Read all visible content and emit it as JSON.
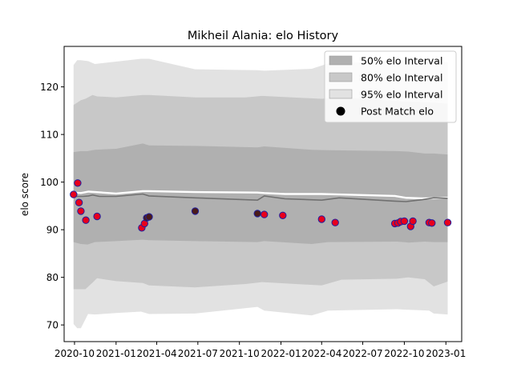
{
  "chart_data": {
    "type": "line",
    "title": "Mikheil Alania: elo History",
    "xlabel": "",
    "ylabel": "elo score",
    "x_ticks": [
      "2020-10",
      "2021-01",
      "2021-04",
      "2021-07",
      "2021-10",
      "2022-01",
      "2022-04",
      "2022-07",
      "2022-10",
      "2023-01"
    ],
    "y_ticks": [
      70,
      80,
      90,
      100,
      110,
      120
    ],
    "xlim": [
      "2020-09-08",
      "2023-02-05"
    ],
    "ylim": [
      66.5,
      128.5
    ],
    "grid": false,
    "legend_position": "top-right",
    "legend": [
      {
        "label": "50% elo Interval",
        "kind": "band50"
      },
      {
        "label": "80% elo Interval",
        "kind": "band80"
      },
      {
        "label": "95% elo Interval",
        "kind": "band95"
      },
      {
        "label": "Post Match elo",
        "kind": "marker"
      }
    ],
    "colors": {
      "band50": "#b0b0b0",
      "band80": "#c8c8c8",
      "band95": "#e2e2e2",
      "mean_line": "#707070",
      "median_line": "#ffffff",
      "marker_fill_win": "#e8001c",
      "marker_fill_loss": "#4a1a1a",
      "marker_edge": "#2020a0"
    },
    "series": [
      {
        "name": "95% elo Interval",
        "x": [
          "2020-09-29",
          "2020-10-07",
          "2020-10-15",
          "2020-10-31",
          "2020-11-15",
          "2021-01-01",
          "2021-02-25",
          "2021-03-15",
          "2021-06-25",
          "2021-11-10",
          "2021-11-25",
          "2022-03-10",
          "2022-04-15",
          "2022-09-15",
          "2022-10-05",
          "2022-11-25",
          "2022-12-05",
          "2023-01-05"
        ],
        "lower": [
          70.2,
          69.3,
          69.3,
          72.3,
          72.2,
          72.5,
          72.8,
          72.3,
          72.4,
          73.8,
          73.0,
          72.0,
          73.0,
          73.3,
          73.2,
          73.0,
          72.4,
          72.2
        ],
        "upper": [
          124.6,
          125.6,
          125.6,
          125.4,
          124.8,
          125.3,
          125.9,
          125.9,
          123.7,
          123.5,
          123.4,
          123.8,
          124.9,
          125.4,
          125.4,
          125.3,
          125.2,
          125.2
        ]
      },
      {
        "name": "80% elo Interval",
        "x": [
          "2020-09-29",
          "2020-10-15",
          "2020-10-25",
          "2020-11-10",
          "2020-11-20",
          "2021-01-01",
          "2021-03-01",
          "2021-03-15",
          "2021-06-25",
          "2021-10-15",
          "2021-11-20",
          "2022-04-01",
          "2022-05-15",
          "2022-09-15",
          "2022-10-10",
          "2022-11-15",
          "2022-12-05",
          "2023-01-05"
        ],
        "lower": [
          77.5,
          77.5,
          77.5,
          78.9,
          79.8,
          79.2,
          78.8,
          78.3,
          77.9,
          78.6,
          79.0,
          78.3,
          79.5,
          79.7,
          80.0,
          79.6,
          78.1,
          79.1
        ],
        "upper": [
          116.2,
          117.2,
          117.5,
          118.3,
          118.0,
          117.8,
          118.3,
          118.3,
          117.8,
          117.8,
          118.1,
          117.5,
          117.8,
          117.0,
          116.9,
          116.8,
          116.7,
          116.5
        ]
      },
      {
        "name": "50% elo Interval",
        "x": [
          "2020-09-29",
          "2020-10-15",
          "2020-10-30",
          "2020-11-15",
          "2021-01-01",
          "2021-03-01",
          "2021-03-15",
          "2021-06-25",
          "2021-11-10",
          "2021-11-25",
          "2022-03-10",
          "2022-04-15",
          "2022-09-15",
          "2022-10-10",
          "2022-11-15",
          "2022-12-05",
          "2023-01-05"
        ],
        "lower": [
          87.4,
          87.0,
          86.9,
          87.4,
          87.6,
          87.9,
          87.8,
          87.6,
          87.4,
          87.6,
          87.0,
          87.4,
          87.5,
          87.3,
          87.5,
          87.4,
          87.4
        ],
        "upper": [
          106.3,
          106.5,
          106.5,
          106.8,
          107.0,
          108.1,
          107.7,
          107.6,
          107.3,
          107.5,
          106.8,
          106.7,
          106.5,
          106.4,
          106.0,
          106.0,
          105.8
        ]
      },
      {
        "name": "mean elo",
        "x": [
          "2020-09-29",
          "2020-10-10",
          "2020-10-20",
          "2020-11-01",
          "2020-11-10",
          "2020-11-25",
          "2021-01-01",
          "2021-03-01",
          "2021-03-15",
          "2021-06-25",
          "2021-11-10",
          "2021-11-25",
          "2022-01-10",
          "2022-04-01",
          "2022-05-10",
          "2022-09-10",
          "2022-10-05",
          "2022-11-10",
          "2022-12-05",
          "2023-01-05"
        ],
        "values": [
          97.0,
          97.0,
          97.0,
          97.1,
          97.3,
          97.0,
          97.0,
          97.5,
          97.1,
          96.7,
          96.2,
          97.1,
          96.5,
          96.2,
          96.7,
          96.0,
          95.9,
          96.3,
          96.7,
          96.6
        ]
      },
      {
        "name": "median elo",
        "x": [
          "2020-09-29",
          "2020-10-15",
          "2020-11-01",
          "2021-01-01",
          "2021-03-01",
          "2021-03-15",
          "2021-06-25",
          "2021-11-10",
          "2021-11-25",
          "2022-01-10",
          "2022-04-01",
          "2022-05-10",
          "2022-09-10",
          "2022-10-05",
          "2022-11-10",
          "2022-12-05",
          "2023-01-05"
        ],
        "values": [
          97.8,
          97.7,
          98.0,
          97.6,
          98.1,
          98.1,
          97.9,
          97.8,
          97.7,
          97.5,
          97.5,
          97.4,
          97.1,
          96.7,
          96.6,
          96.6,
          96.7
        ]
      },
      {
        "name": "Post Match elo",
        "x": [
          "2020-09-29",
          "2020-10-08",
          "2020-10-11",
          "2020-10-15",
          "2020-10-26",
          "2020-11-20",
          "2021-02-27",
          "2021-03-05",
          "2021-03-10",
          "2021-03-15",
          "2021-06-25",
          "2021-11-10",
          "2021-11-25",
          "2022-01-05",
          "2022-04-01",
          "2022-05-01",
          "2022-09-10",
          "2022-09-17",
          "2022-09-23",
          "2022-10-01",
          "2022-10-15",
          "2022-10-20",
          "2022-11-25",
          "2022-12-01",
          "2023-01-05"
        ],
        "values": [
          97.4,
          99.8,
          95.7,
          93.9,
          92.0,
          92.8,
          90.4,
          91.3,
          92.5,
          92.7,
          93.9,
          93.4,
          93.2,
          93.0,
          92.2,
          91.5,
          91.3,
          91.4,
          91.7,
          91.8,
          90.7,
          91.8,
          91.5,
          91.4,
          91.5
        ],
        "outcome": [
          "win",
          "win",
          "win",
          "win",
          "win",
          "win",
          "win",
          "win",
          "loss",
          "loss",
          "loss",
          "loss",
          "win",
          "win",
          "win",
          "win",
          "win",
          "win",
          "win",
          "win",
          "win",
          "win",
          "win",
          "win",
          "win"
        ]
      }
    ]
  }
}
